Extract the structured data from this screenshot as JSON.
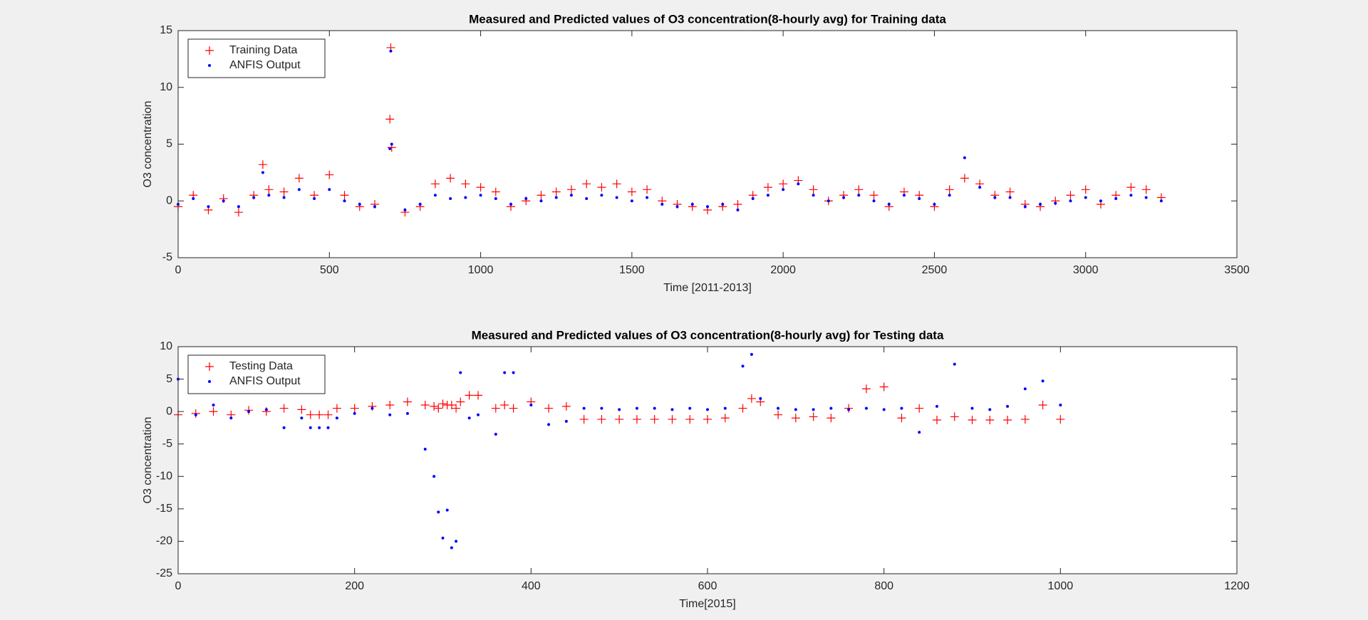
{
  "chart_data": [
    {
      "type": "scatter",
      "title": "Measured and Predicted values of O3 concentration(8-hourly avg) for Training data",
      "xlabel": "Time [2011-2013]",
      "ylabel": "O3 concentration",
      "xlim": [
        0,
        3500
      ],
      "xticks": [
        0,
        500,
        1000,
        1500,
        2000,
        2500,
        3000,
        3500
      ],
      "ylim": [
        -5,
        15
      ],
      "yticks": [
        -5,
        0,
        5,
        10,
        15
      ],
      "legend": "upper left",
      "x": [
        0,
        50,
        100,
        150,
        200,
        250,
        280,
        300,
        350,
        400,
        450,
        500,
        550,
        600,
        650,
        700,
        703,
        706,
        750,
        800,
        850,
        900,
        950,
        1000,
        1050,
        1100,
        1150,
        1200,
        1250,
        1300,
        1350,
        1400,
        1450,
        1500,
        1550,
        1600,
        1650,
        1700,
        1750,
        1800,
        1850,
        1900,
        1950,
        2000,
        2050,
        2100,
        2150,
        2200,
        2250,
        2300,
        2350,
        2400,
        2450,
        2500,
        2550,
        2600,
        2650,
        2700,
        2750,
        2800,
        2850,
        2900,
        2950,
        3000,
        3050,
        3100,
        3150,
        3200,
        3250
      ],
      "series": [
        {
          "name": "Training Data",
          "color": "#ff0000",
          "marker": "+",
          "values": [
            -0.5,
            0.5,
            -0.8,
            0.2,
            -1,
            0.5,
            3.2,
            1,
            0.8,
            2,
            0.5,
            2.3,
            0.5,
            -0.5,
            -0.3,
            7.2,
            13.5,
            4.7,
            -1,
            -0.5,
            1.5,
            2,
            1.5,
            1.2,
            0.8,
            -0.5,
            0,
            0.5,
            0.8,
            1,
            1.5,
            1.2,
            1.5,
            0.8,
            1,
            0,
            -0.3,
            -0.5,
            -0.8,
            -0.5,
            -0.3,
            0.5,
            1.2,
            1.5,
            1.8,
            1,
            0,
            0.5,
            1,
            0.5,
            -0.5,
            0.8,
            0.5,
            -0.5,
            1,
            2,
            1.5,
            0.5,
            0.8,
            -0.3,
            -0.5,
            0,
            0.5,
            1,
            -0.3,
            0.5,
            1.2,
            1,
            0.3
          ]
        },
        {
          "name": "ANFIS Output",
          "color": "#0000ff",
          "marker": ".",
          "values": [
            -0.3,
            0.2,
            -0.5,
            0,
            -0.5,
            0.3,
            2.5,
            0.5,
            0.3,
            1,
            0.2,
            1,
            0,
            -0.3,
            -0.5,
            4.6,
            13.2,
            5,
            -0.8,
            -0.3,
            0.5,
            0.2,
            0.3,
            0.5,
            0.2,
            -0.3,
            0.2,
            0,
            0.3,
            0.5,
            0.2,
            0.5,
            0.3,
            0,
            0.3,
            -0.3,
            -0.5,
            -0.3,
            -0.5,
            -0.3,
            -0.8,
            0.2,
            0.5,
            1,
            1.5,
            0.5,
            0,
            0.3,
            0.5,
            0,
            -0.3,
            0.5,
            0.2,
            -0.3,
            0.5,
            3.8,
            1.2,
            0.3,
            0.3,
            -0.5,
            -0.3,
            -0.2,
            0,
            0.3,
            0,
            0.2,
            0.5,
            0.3,
            0
          ]
        }
      ]
    },
    {
      "type": "scatter",
      "title": "Measured and Predicted values of O3 concentration(8-hourly avg) for Testing data",
      "xlabel": "Time[2015]",
      "ylabel": "O3 concentration",
      "xlim": [
        0,
        1200
      ],
      "xticks": [
        0,
        200,
        400,
        600,
        800,
        1000,
        1200
      ],
      "ylim": [
        -25,
        10
      ],
      "yticks": [
        -25,
        -20,
        -15,
        -10,
        -5,
        0,
        5,
        10
      ],
      "legend": "upper left",
      "x": [
        0,
        20,
        40,
        60,
        80,
        100,
        120,
        140,
        150,
        160,
        170,
        180,
        200,
        220,
        240,
        260,
        280,
        290,
        295,
        300,
        305,
        310,
        315,
        320,
        330,
        340,
        360,
        370,
        380,
        400,
        420,
        440,
        460,
        480,
        500,
        520,
        540,
        560,
        580,
        600,
        620,
        640,
        650,
        660,
        680,
        700,
        720,
        740,
        760,
        780,
        800,
        820,
        840,
        860,
        880,
        900,
        920,
        940,
        960,
        980,
        1000
      ],
      "series": [
        {
          "name": "Testing Data",
          "color": "#ff0000",
          "marker": "+",
          "values": [
            -0.5,
            -0.3,
            0,
            -0.5,
            0.2,
            0,
            0.5,
            0.3,
            -0.5,
            -0.5,
            -0.5,
            0.5,
            0.5,
            0.8,
            1,
            1.5,
            1,
            0.8,
            0.5,
            1.2,
            1,
            1,
            0.5,
            1.5,
            2.5,
            2.5,
            0.5,
            1,
            0.5,
            1.5,
            0.5,
            0.8,
            -1.2,
            -1.2,
            -1.2,
            -1.2,
            -1.2,
            -1.2,
            -1.2,
            -1.2,
            -1,
            0.5,
            2,
            1.5,
            -0.5,
            -1,
            -0.8,
            -1,
            0.5,
            3.5,
            3.8,
            -1,
            0.5,
            -1.3,
            -0.8,
            -1.3,
            -1.3,
            -1.3,
            -1.2,
            1,
            -1.2
          ]
        },
        {
          "name": "ANFIS Output",
          "color": "#0000ff",
          "marker": ".",
          "values": [
            5,
            -0.5,
            1,
            -1,
            0,
            0.3,
            -2.5,
            -1,
            -2.5,
            -2.5,
            -2.5,
            -1,
            -0.3,
            0.5,
            -0.5,
            -0.3,
            -5.8,
            -10,
            -15.5,
            -19.5,
            -15.2,
            -21,
            -20,
            6,
            -1,
            -0.5,
            -3.5,
            6,
            6,
            1,
            -2,
            -1.5,
            0.5,
            0.5,
            0.3,
            0.5,
            0.5,
            0.3,
            0.5,
            0.3,
            0.5,
            7,
            8.8,
            2,
            0.5,
            0.3,
            0.3,
            0.5,
            0.3,
            0.5,
            0.3,
            0.5,
            -3.2,
            0.8,
            7.3,
            0.5,
            0.3,
            0.8,
            3.5,
            4.7,
            1
          ]
        }
      ]
    }
  ]
}
